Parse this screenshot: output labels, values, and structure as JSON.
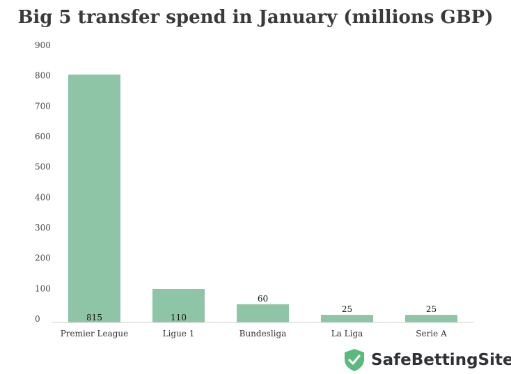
{
  "chart_data": {
    "type": "bar",
    "title": "Big 5 transfer spend in January (millions GBP)",
    "xlabel": "",
    "ylabel": "",
    "categories": [
      "Premier League",
      "Ligue 1",
      "Bundesliga",
      "La Liga",
      "Serie A"
    ],
    "values": [
      815,
      110,
      60,
      25,
      25
    ],
    "data_labels": [
      "815",
      "110",
      "60",
      "25",
      "25"
    ],
    "yticks": [
      "0",
      "100",
      "200",
      "300",
      "400",
      "500",
      "600",
      "700",
      "800",
      "900"
    ],
    "ylim": [
      0,
      900
    ],
    "grid": false,
    "legend": "none",
    "bar_color": "#8fc5a7"
  },
  "brand": {
    "name": "SafeBettingSites",
    "icon": "shield-check-icon",
    "icon_color": "#5bb97e"
  }
}
